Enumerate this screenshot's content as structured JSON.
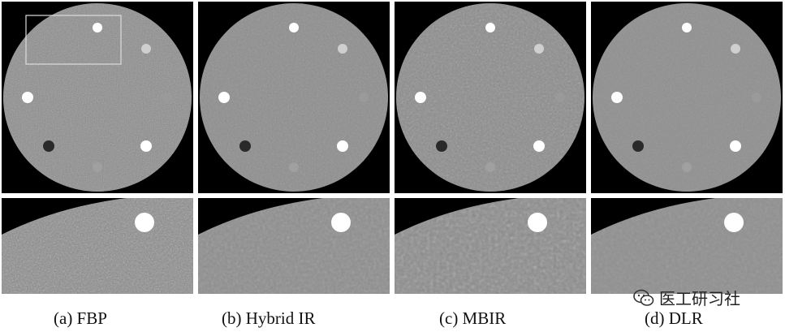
{
  "panels": [
    {
      "id": "a",
      "caption": "(a) FBP",
      "noise": 0.55,
      "baseFreq": 0.9
    },
    {
      "id": "b",
      "caption": "(b) Hybrid IR",
      "noise": 0.28,
      "baseFreq": 0.55
    },
    {
      "id": "c",
      "caption": "(c) MBIR",
      "noise": 0.38,
      "baseFreq": 0.45
    },
    {
      "id": "d",
      "caption": "(d) DLR",
      "noise": 0.18,
      "baseFreq": 0.5
    }
  ],
  "watermark": {
    "text": "医工研习社",
    "icon": "wechat-icon"
  },
  "colors": {
    "background": "#000000",
    "phantom": "#8a8a8a",
    "insert_bright": "#ffffff",
    "insert_dark": "#2a2a2a",
    "roi_box": "#dddddd"
  }
}
